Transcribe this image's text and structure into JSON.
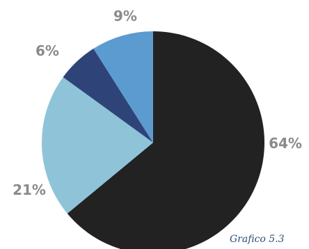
{
  "chart_data": {
    "type": "pie",
    "start_angle": "12 o'clock",
    "direction": "clockwise",
    "slices": [
      {
        "value": 64,
        "label": "64%",
        "color": "#222222"
      },
      {
        "value": 21,
        "label": "21%",
        "color": "#8fc4d8"
      },
      {
        "value": 6,
        "label": "6%",
        "color": "#2e4478"
      },
      {
        "value": 9,
        "label": "9%",
        "color": "#5b9bd0"
      }
    ],
    "legend": "none"
  },
  "caption": "Grafico 5.3"
}
